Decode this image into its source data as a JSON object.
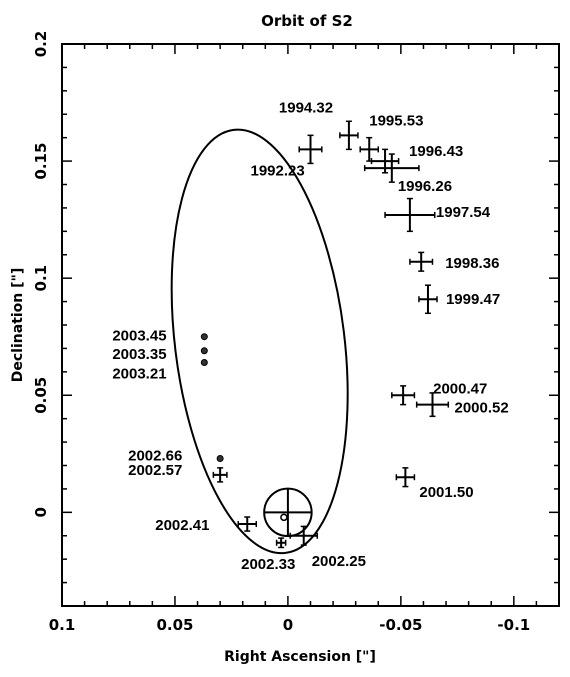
{
  "chart_data": {
    "type": "scatter",
    "title": "Orbit of S2",
    "xlabel": "Right Ascension  [\"]",
    "ylabel": "Declination [\"]",
    "xlim": [
      0.1,
      -0.12
    ],
    "ylim": [
      -0.04,
      0.2
    ],
    "x_ticks": [
      {
        "value": 0.1,
        "label": "0.1"
      },
      {
        "value": 0.05,
        "label": "0.05"
      },
      {
        "value": 0,
        "label": "0"
      },
      {
        "value": -0.05,
        "label": "-0.05"
      },
      {
        "value": -0.1,
        "label": "-0.1"
      }
    ],
    "y_ticks": [
      {
        "value": 0,
        "label": "0"
      },
      {
        "value": 0.05,
        "label": "0.05"
      },
      {
        "value": 0.1,
        "label": "0.1"
      },
      {
        "value": 0.15,
        "label": "0.15"
      },
      {
        "value": 0.2,
        "label": "0.2"
      }
    ],
    "grid": false,
    "center_marker": {
      "x": 0,
      "y": 0,
      "radius": 0.01
    },
    "orbit_fit": {
      "center_x": 0.0125,
      "center_y": 0.073,
      "semi_axis_x": 0.0375,
      "semi_axis_y": 0.091,
      "rotation_deg": -7
    },
    "points": [
      {
        "label": "1992.23",
        "x": -0.01,
        "y": 0.155,
        "xerr": 0.005,
        "yerr": 0.006,
        "label_dx": -60,
        "label_dy": 26
      },
      {
        "label": "1994.32",
        "x": -0.027,
        "y": 0.161,
        "xerr": 0.004,
        "yerr": 0.006,
        "label_dx": -70,
        "label_dy": -23
      },
      {
        "label": "1995.53",
        "x": -0.036,
        "y": 0.155,
        "xerr": 0.004,
        "yerr": 0.005,
        "label_dx": 0,
        "label_dy": -24
      },
      {
        "label": "1996.43",
        "x": -0.043,
        "y": 0.15,
        "xerr": 0.006,
        "yerr": 0.005,
        "label_dx": 24,
        "label_dy": -5
      },
      {
        "label": "1996.26",
        "x": -0.046,
        "y": 0.147,
        "xerr": 0.012,
        "yerr": 0.006,
        "label_dx": 6,
        "label_dy": 23
      },
      {
        "label": "1997.54",
        "x": -0.054,
        "y": 0.127,
        "xerr": 0.011,
        "yerr": 0.007,
        "label_dx": 26,
        "label_dy": 2
      },
      {
        "label": "1998.36",
        "x": -0.059,
        "y": 0.107,
        "xerr": 0.005,
        "yerr": 0.004,
        "label_dx": 24,
        "label_dy": 6
      },
      {
        "label": "1999.47",
        "x": -0.062,
        "y": 0.091,
        "xerr": 0.004,
        "yerr": 0.006,
        "label_dx": 18,
        "label_dy": 5
      },
      {
        "label": "2000.47",
        "x": -0.051,
        "y": 0.05,
        "xerr": 0.005,
        "yerr": 0.004,
        "label_dx": 30,
        "label_dy": -2
      },
      {
        "label": "2000.52",
        "x": -0.064,
        "y": 0.046,
        "xerr": 0.007,
        "yerr": 0.005,
        "label_dx": 22,
        "label_dy": 8
      },
      {
        "label": "2001.50",
        "x": -0.052,
        "y": 0.015,
        "xerr": 0.004,
        "yerr": 0.004,
        "label_dx": 14,
        "label_dy": 20
      },
      {
        "label": "2002.25",
        "x": -0.007,
        "y": -0.01,
        "xerr": 0.006,
        "yerr": 0.004,
        "label_dx": 8,
        "label_dy": 30
      },
      {
        "label": "2002.33",
        "x": 0.003,
        "y": -0.013,
        "xerr": 0.002,
        "yerr": 0.002,
        "label_dx": -40,
        "label_dy": 26
      },
      {
        "label": "2002.41",
        "x": 0.018,
        "y": -0.005,
        "xerr": 0.004,
        "yerr": 0.003,
        "label_dx": -92,
        "label_dy": 6
      },
      {
        "label": "2002.57",
        "x": 0.03,
        "y": 0.016,
        "xerr": 0.003,
        "yerr": 0.003,
        "label_dx": -92,
        "label_dy": 0
      },
      {
        "label": "2002.66",
        "x": 0.03,
        "y": 0.023,
        "xerr": 0.001,
        "yerr": 0.001,
        "label_dx": -92,
        "label_dy": 2
      },
      {
        "label": "2003.21",
        "x": 0.037,
        "y": 0.064,
        "xerr": 0.001,
        "yerr": 0.001,
        "label_dx": -92,
        "label_dy": 16
      },
      {
        "label": "2003.35",
        "x": 0.037,
        "y": 0.069,
        "xerr": 0.001,
        "yerr": 0.001,
        "label_dx": -92,
        "label_dy": 8
      },
      {
        "label": "2003.45",
        "x": 0.037,
        "y": 0.075,
        "xerr": 0.001,
        "yerr": 0.001,
        "label_dx": -92,
        "label_dy": 4
      }
    ],
    "marker_style": {
      "circle_points": [
        "2003.45",
        "2003.35",
        "2003.21",
        "2002.66"
      ]
    }
  }
}
